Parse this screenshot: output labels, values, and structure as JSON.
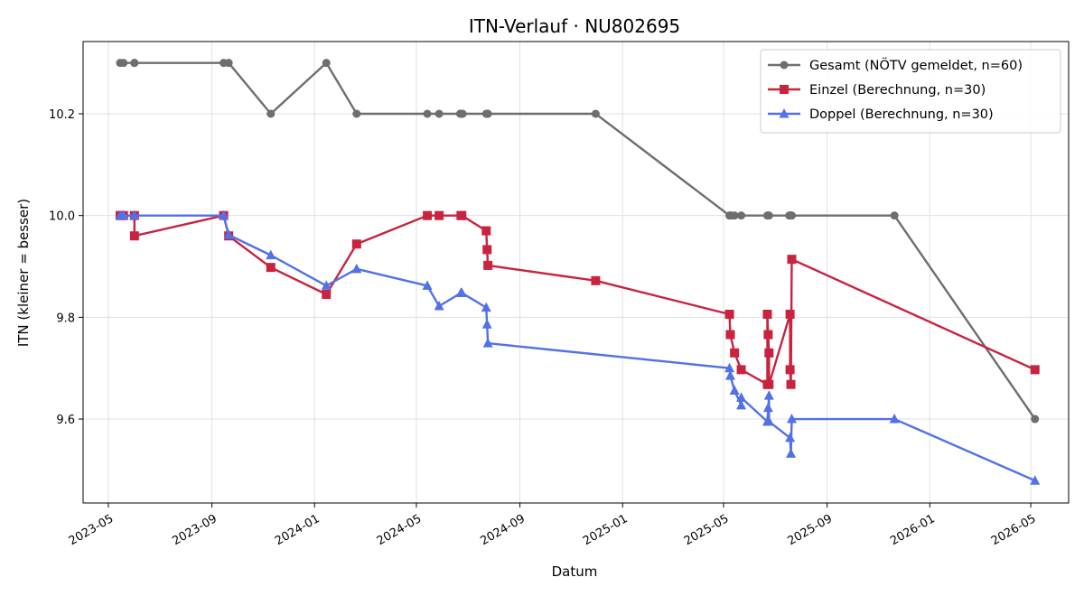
{
  "chart_data": {
    "type": "line",
    "title": "ITN-Verlauf · NU802695",
    "xlabel": "Datum",
    "ylabel": "ITN  (kleiner = besser)",
    "x_axis_type": "date",
    "xlim": [
      "2023-04-01",
      "2026-06-15"
    ],
    "ylim": [
      9.435,
      10.342
    ],
    "x_ticks": [
      "2023-05-01",
      "2023-09-01",
      "2024-01-01",
      "2024-05-01",
      "2024-09-01",
      "2025-01-01",
      "2025-05-01",
      "2025-09-01",
      "2026-01-01",
      "2026-05-01"
    ],
    "x_tick_labels": [
      "2023-05",
      "2023-09",
      "2024-01",
      "2024-05",
      "2024-09",
      "2025-01",
      "2025-05",
      "2025-09",
      "2026-01",
      "2026-05"
    ],
    "y_ticks": [
      9.6,
      9.8,
      10.0,
      10.2
    ],
    "y_tick_labels": [
      "9.6",
      "9.8",
      "10.0",
      "10.2"
    ],
    "grid": true,
    "legend_position": "top-right",
    "series": [
      {
        "name": "Gesamt (NÖTV gemeldet, n=60)",
        "color": "#6e6e6e",
        "marker": "circle",
        "points": [
          {
            "x": "2023-05-15",
            "y": 10.3
          },
          {
            "x": "2023-05-19",
            "y": 10.3
          },
          {
            "x": "2023-06-01",
            "y": 10.3
          },
          {
            "x": "2023-06-01",
            "y": 10.3
          },
          {
            "x": "2023-09-15",
            "y": 10.3
          },
          {
            "x": "2023-09-21",
            "y": 10.3
          },
          {
            "x": "2023-11-10",
            "y": 10.2
          },
          {
            "x": "2024-01-15",
            "y": 10.3
          },
          {
            "x": "2024-02-20",
            "y": 10.2
          },
          {
            "x": "2024-05-14",
            "y": 10.2
          },
          {
            "x": "2024-05-28",
            "y": 10.2
          },
          {
            "x": "2024-06-22",
            "y": 10.2
          },
          {
            "x": "2024-06-24",
            "y": 10.2
          },
          {
            "x": "2024-06-25",
            "y": 10.2
          },
          {
            "x": "2024-07-23",
            "y": 10.2
          },
          {
            "x": "2024-07-24",
            "y": 10.2
          },
          {
            "x": "2024-07-25",
            "y": 10.2
          },
          {
            "x": "2024-11-30",
            "y": 10.2
          },
          {
            "x": "2025-05-08",
            "y": 10.0
          },
          {
            "x": "2025-05-09",
            "y": 10.0
          },
          {
            "x": "2025-05-10",
            "y": 10.0
          },
          {
            "x": "2025-05-14",
            "y": 10.0
          },
          {
            "x": "2025-05-22",
            "y": 10.0
          },
          {
            "x": "2025-06-22",
            "y": 10.0
          },
          {
            "x": "2025-06-23",
            "y": 10.0
          },
          {
            "x": "2025-06-24",
            "y": 10.0
          },
          {
            "x": "2025-07-18",
            "y": 10.0
          },
          {
            "x": "2025-07-19",
            "y": 10.0
          },
          {
            "x": "2025-07-20",
            "y": 10.0
          },
          {
            "x": "2025-07-21",
            "y": 10.0
          },
          {
            "x": "2025-11-20",
            "y": 10.0
          },
          {
            "x": "2026-05-06",
            "y": 9.6
          }
        ]
      },
      {
        "name": "Einzel (Berechnung, n=30)",
        "color": "#c8233f",
        "marker": "square",
        "points": [
          {
            "x": "2023-05-15",
            "y": 10.0
          },
          {
            "x": "2023-05-19",
            "y": 10.0
          },
          {
            "x": "2023-06-01",
            "y": 10.0
          },
          {
            "x": "2023-06-01",
            "y": 9.96
          },
          {
            "x": "2023-09-15",
            "y": 10.0
          },
          {
            "x": "2023-09-21",
            "y": 9.96
          },
          {
            "x": "2023-11-10",
            "y": 9.898
          },
          {
            "x": "2024-01-15",
            "y": 9.845
          },
          {
            "x": "2024-02-20",
            "y": 9.944
          },
          {
            "x": "2024-05-14",
            "y": 10.0
          },
          {
            "x": "2024-05-28",
            "y": 10.0
          },
          {
            "x": "2024-06-23",
            "y": 10.0
          },
          {
            "x": "2024-06-24",
            "y": 10.0
          },
          {
            "x": "2024-07-23",
            "y": 9.97
          },
          {
            "x": "2024-07-24",
            "y": 9.933
          },
          {
            "x": "2024-07-25",
            "y": 9.902
          },
          {
            "x": "2024-11-30",
            "y": 9.872
          },
          {
            "x": "2025-05-08",
            "y": 9.806
          },
          {
            "x": "2025-05-09",
            "y": 9.766
          },
          {
            "x": "2025-05-14",
            "y": 9.73
          },
          {
            "x": "2025-05-22",
            "y": 9.697
          },
          {
            "x": "2025-06-22",
            "y": 9.668
          },
          {
            "x": "2025-06-22",
            "y": 9.806
          },
          {
            "x": "2025-06-23",
            "y": 9.766
          },
          {
            "x": "2025-06-24",
            "y": 9.73
          },
          {
            "x": "2025-06-24",
            "y": 9.668
          },
          {
            "x": "2025-07-19",
            "y": 9.806
          },
          {
            "x": "2025-07-19",
            "y": 9.697
          },
          {
            "x": "2025-07-20",
            "y": 9.668
          },
          {
            "x": "2025-07-21",
            "y": 9.914
          },
          {
            "x": "2026-05-06",
            "y": 9.697
          }
        ]
      },
      {
        "name": "Doppel (Berechnung, n=30)",
        "color": "#5271e8",
        "marker": "triangle",
        "points": [
          {
            "x": "2023-05-15",
            "y": 10.0
          },
          {
            "x": "2023-05-19",
            "y": 10.0
          },
          {
            "x": "2023-06-01",
            "y": 10.0
          },
          {
            "x": "2023-09-15",
            "y": 10.0
          },
          {
            "x": "2023-09-21",
            "y": 9.962
          },
          {
            "x": "2023-11-10",
            "y": 9.922
          },
          {
            "x": "2024-01-15",
            "y": 9.862
          },
          {
            "x": "2024-02-20",
            "y": 9.895
          },
          {
            "x": "2024-05-14",
            "y": 9.862
          },
          {
            "x": "2024-05-28",
            "y": 9.822
          },
          {
            "x": "2024-06-23",
            "y": 9.848
          },
          {
            "x": "2024-06-24",
            "y": 9.848
          },
          {
            "x": "2024-07-23",
            "y": 9.819
          },
          {
            "x": "2024-07-24",
            "y": 9.786
          },
          {
            "x": "2024-07-25",
            "y": 9.749
          },
          {
            "x": "2025-05-08",
            "y": 9.7
          },
          {
            "x": "2025-05-09",
            "y": 9.685
          },
          {
            "x": "2025-05-14",
            "y": 9.656
          },
          {
            "x": "2025-05-22",
            "y": 9.627
          },
          {
            "x": "2025-05-22",
            "y": 9.642
          },
          {
            "x": "2025-06-22",
            "y": 9.595
          },
          {
            "x": "2025-06-23",
            "y": 9.622
          },
          {
            "x": "2025-06-24",
            "y": 9.646
          },
          {
            "x": "2025-06-24",
            "y": 9.595
          },
          {
            "x": "2025-07-19",
            "y": 9.563
          },
          {
            "x": "2025-07-20",
            "y": 9.532
          },
          {
            "x": "2025-07-21",
            "y": 9.6
          },
          {
            "x": "2025-11-20",
            "y": 9.6
          },
          {
            "x": "2026-05-06",
            "y": 9.479
          }
        ]
      }
    ]
  }
}
